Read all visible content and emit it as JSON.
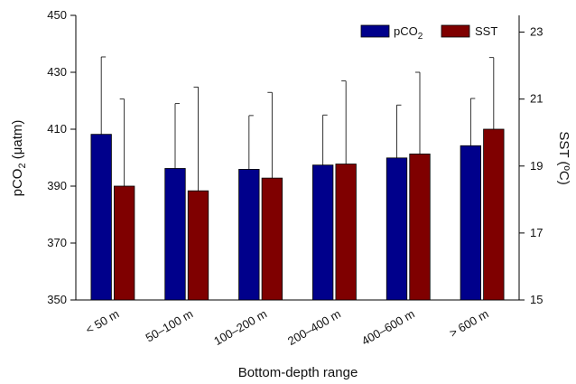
{
  "chart_data": {
    "type": "bar",
    "categories": [
      "< 50 m",
      "50–100 m",
      "100–200 m",
      "200–400 m",
      "400–600 m",
      "> 600 m"
    ],
    "series": [
      {
        "name": "pCO2",
        "axis": "left",
        "color": "#00008B",
        "values": [
          408.2,
          396.2,
          395.9,
          397.4,
          399.9,
          404.2
        ],
        "error_upper": [
          27.2,
          22.8,
          18.9,
          17.6,
          18.6,
          16.6
        ]
      },
      {
        "name": "SST",
        "axis": "right",
        "color": "#7F0000",
        "values": [
          18.4,
          18.26,
          18.64,
          19.06,
          19.36,
          20.1
        ],
        "error_upper": [
          2.6,
          3.1,
          2.56,
          2.48,
          2.44,
          2.14
        ]
      }
    ],
    "y_left": {
      "label": "pCO₂ (μatm)",
      "ylim": [
        350,
        450
      ],
      "ticks": [
        "350",
        "370",
        "390",
        "410",
        "430",
        "450"
      ]
    },
    "y_right": {
      "label": "SST (ºC)",
      "ylim": [
        15,
        23.5
      ],
      "ticks": [
        "15",
        "17",
        "19",
        "21",
        "23"
      ]
    },
    "xlabel": "Bottom-depth range",
    "legend": {
      "placement": "top-right",
      "items": [
        {
          "label_main": "pCO",
          "label_sub": "2",
          "color": "#00008B"
        },
        {
          "label_main": "SST",
          "label_sub": "",
          "color": "#7F0000"
        }
      ]
    },
    "grid": false
  }
}
